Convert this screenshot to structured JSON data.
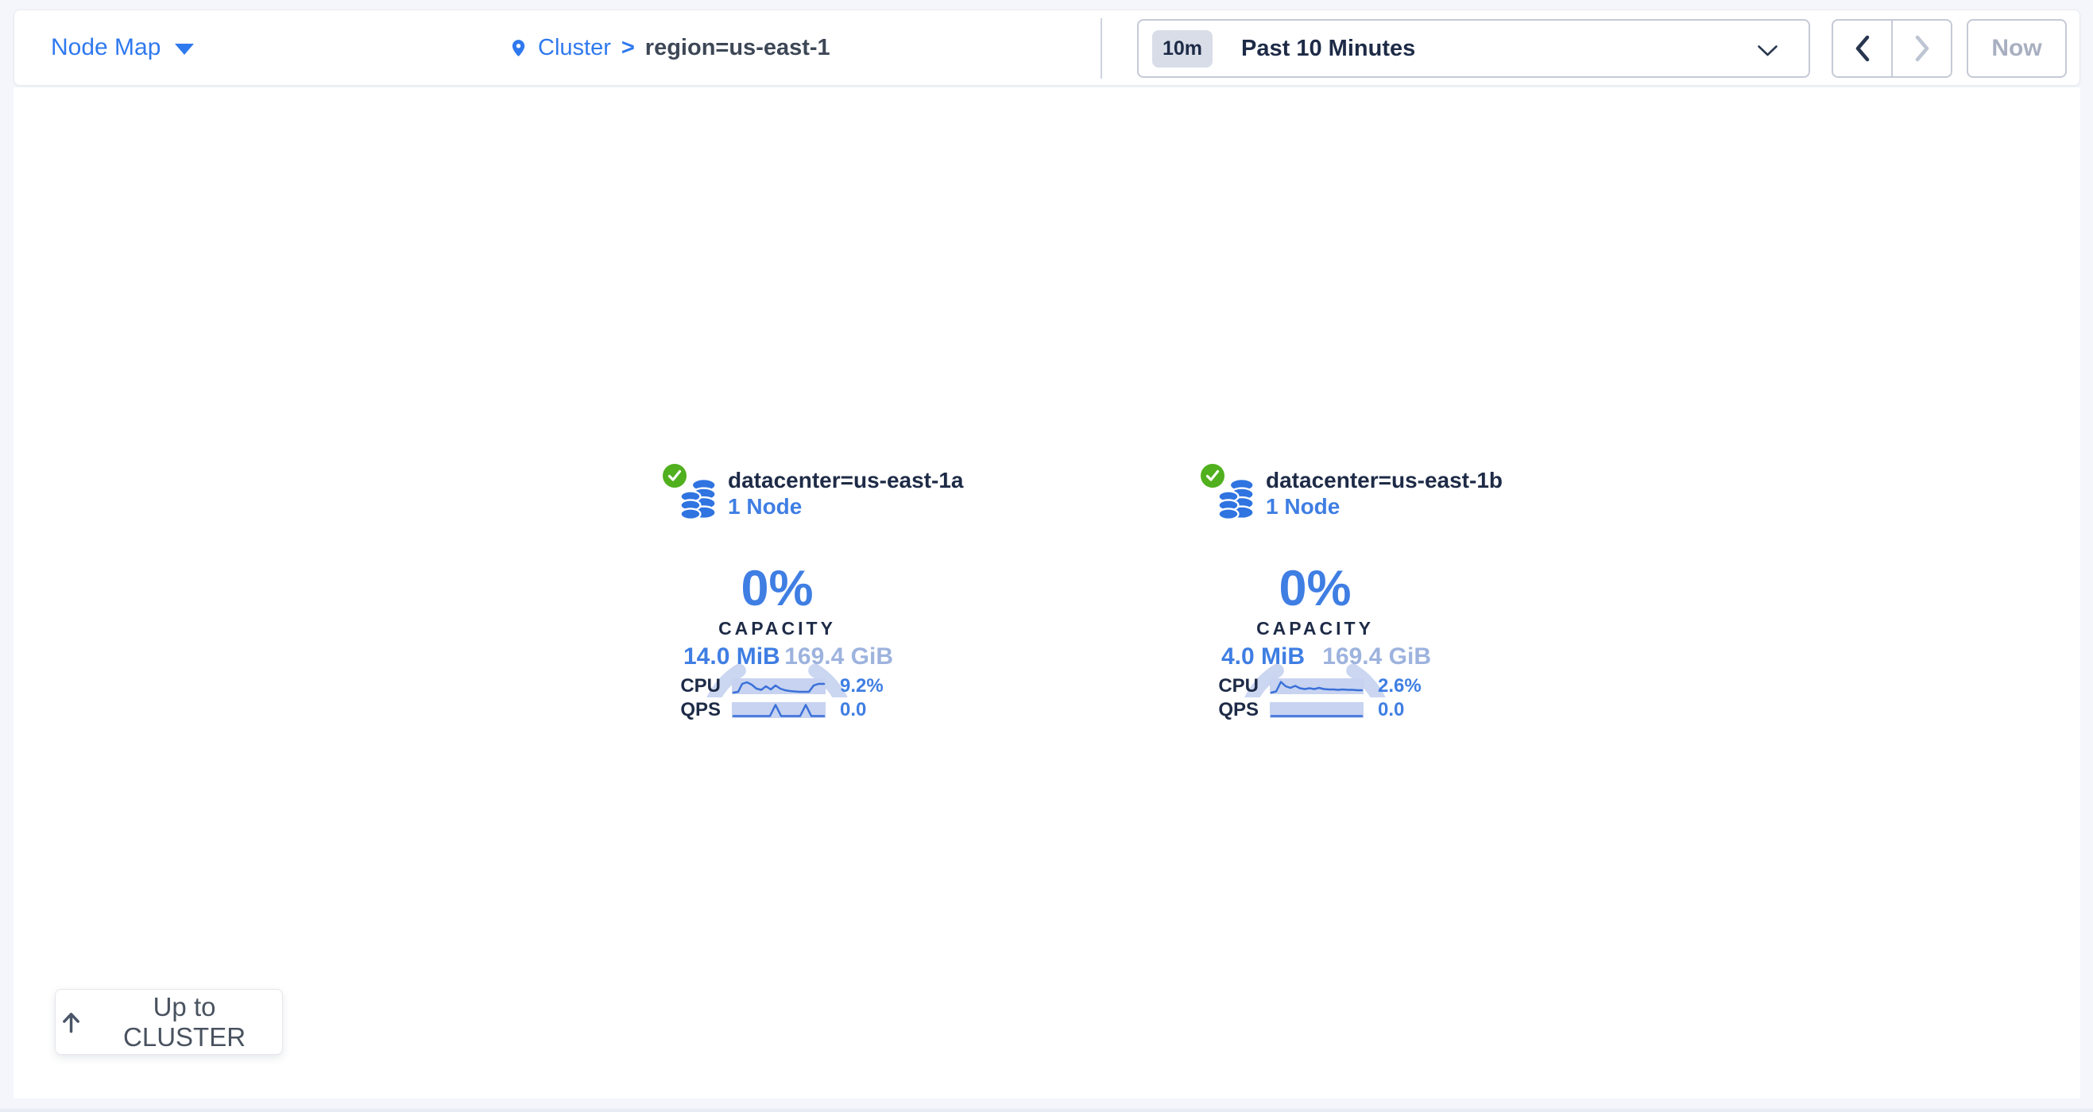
{
  "header": {
    "view_selector": {
      "label": "Node Map",
      "icon": "caret-down-icon"
    },
    "breadcrumb": {
      "icon": "location-pin-icon",
      "root": "Cluster",
      "separator": ">",
      "current": "region=us-east-1"
    },
    "time_selector": {
      "badge": "10m",
      "label": "Past 10 Minutes",
      "icon": "chevron-down-icon"
    },
    "nav": {
      "prev_icon": "chevron-left-icon",
      "next_icon": "chevron-right-icon",
      "now_label": "Now"
    }
  },
  "datacenters": [
    {
      "status_icon": "check-circle-icon",
      "type_icon": "database-stack-icon",
      "name": "datacenter=us-east-1a",
      "nodes": "1 Node",
      "capacity_percent": "0%",
      "capacity_label": "CAPACITY",
      "capacity_used": "14.0 MiB",
      "capacity_total": "169.4 GiB",
      "metrics": [
        {
          "label": "CPU",
          "value": "9.2%",
          "sparkline": [
            [
              2,
              18
            ],
            [
              8,
              17
            ],
            [
              13,
              7
            ],
            [
              19,
              5
            ],
            [
              25,
              8
            ],
            [
              31,
              13
            ],
            [
              37,
              14.5
            ],
            [
              43,
              10
            ],
            [
              49,
              14
            ],
            [
              55,
              9
            ],
            [
              61,
              13
            ],
            [
              67,
              15
            ],
            [
              73,
              16
            ],
            [
              79,
              16.5
            ],
            [
              85,
              17
            ],
            [
              91,
              17
            ],
            [
              97,
              17
            ],
            [
              103,
              9
            ],
            [
              109,
              7
            ],
            [
              116,
              7
            ]
          ]
        },
        {
          "label": "QPS",
          "value": "0.0",
          "sparkline": [
            [
              2,
              17.5
            ],
            [
              48,
              17.5
            ],
            [
              55,
              3.5
            ],
            [
              62,
              17.5
            ],
            [
              86,
              17.5
            ],
            [
              93,
              3.5
            ],
            [
              100,
              17.5
            ],
            [
              116,
              17.5
            ]
          ]
        }
      ]
    },
    {
      "status_icon": "check-circle-icon",
      "type_icon": "database-stack-icon",
      "name": "datacenter=us-east-1b",
      "nodes": "1 Node",
      "capacity_percent": "0%",
      "capacity_label": "CAPACITY",
      "capacity_used": "4.0 MiB",
      "capacity_total": "169.4 GiB",
      "metrics": [
        {
          "label": "CPU",
          "value": "2.6%",
          "sparkline": [
            [
              2,
              18
            ],
            [
              8,
              16.5
            ],
            [
              14,
              4.5
            ],
            [
              20,
              10
            ],
            [
              26,
              12
            ],
            [
              32,
              9.5
            ],
            [
              38,
              12.5
            ],
            [
              44,
              13.5
            ],
            [
              50,
              12.5
            ],
            [
              56,
              13.5
            ],
            [
              62,
              12
            ],
            [
              68,
              13.5
            ],
            [
              74,
              14
            ],
            [
              80,
              14
            ],
            [
              86,
              14.5
            ],
            [
              92,
              14
            ],
            [
              98,
              14.5
            ],
            [
              104,
              14.5
            ],
            [
              110,
              15
            ],
            [
              116,
              15
            ]
          ]
        },
        {
          "label": "QPS",
          "value": "0.0",
          "sparkline": [
            [
              2,
              17.5
            ],
            [
              116,
              17.5
            ]
          ]
        }
      ]
    }
  ],
  "up_button": {
    "icon": "arrow-up-icon",
    "label": "Up to CLUSTER"
  },
  "colors": {
    "accent_blue": "#3f7ee3",
    "link_blue": "#2f79ef",
    "navy": "#1e2b47",
    "muted_blue": "#9db3de",
    "status_green": "#50b01e",
    "donut_track": "#cbd6f1",
    "spark_bg": "#c7d3f0",
    "spark_line": "#3a70d9"
  }
}
